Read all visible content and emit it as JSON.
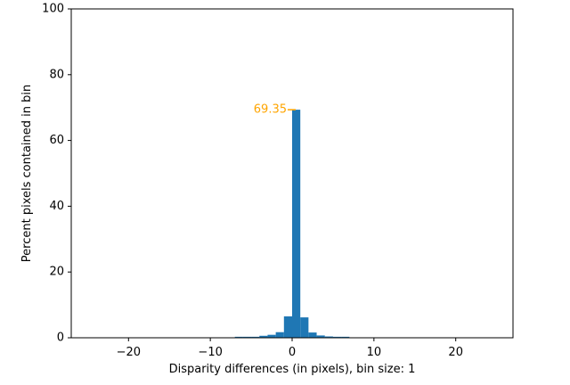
{
  "chart_data": {
    "type": "bar",
    "xlabel": "Disparity differences (in pixels), bin size: 1",
    "ylabel": "Percent pixels contained in bin",
    "xlim": [
      -27,
      27
    ],
    "ylim": [
      0,
      100
    ],
    "xticks": [
      -20,
      -10,
      0,
      10,
      20
    ],
    "xtick_labels": [
      "−20",
      "−10",
      "0",
      "10",
      "20"
    ],
    "yticks": [
      0,
      20,
      40,
      60,
      80,
      100
    ],
    "ytick_labels": [
      "0",
      "20",
      "40",
      "60",
      "80",
      "100"
    ],
    "grid": false,
    "bar_color": "#1f77b4",
    "bins": [
      {
        "left": -7,
        "right": -6,
        "value": 0.3
      },
      {
        "left": -6,
        "right": -5,
        "value": 0.3
      },
      {
        "left": -5,
        "right": -4,
        "value": 0.3
      },
      {
        "left": -4,
        "right": -3,
        "value": 0.6
      },
      {
        "left": -3,
        "right": -2,
        "value": 0.9
      },
      {
        "left": -2,
        "right": -1,
        "value": 1.7
      },
      {
        "left": -1,
        "right": 0,
        "value": 6.5
      },
      {
        "left": 0,
        "right": 1,
        "value": 69.35
      },
      {
        "left": 1,
        "right": 2,
        "value": 6.2
      },
      {
        "left": 2,
        "right": 3,
        "value": 1.6
      },
      {
        "left": 3,
        "right": 4,
        "value": 0.7
      },
      {
        "left": 4,
        "right": 5,
        "value": 0.4
      },
      {
        "left": 5,
        "right": 6,
        "value": 0.3
      },
      {
        "left": 6,
        "right": 7,
        "value": 0.3
      }
    ],
    "annotation": {
      "text": "69.35",
      "x": 0,
      "y": 69.35,
      "color": "#ffa500"
    }
  }
}
